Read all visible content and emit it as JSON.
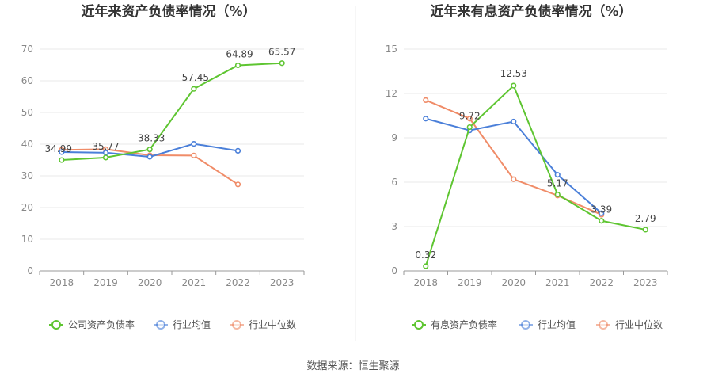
{
  "source_label": "数据来源：恒生聚源",
  "chart_data": [
    {
      "type": "line",
      "title": "近年来资产负债率情况（%）",
      "categories": [
        "2018",
        "2019",
        "2020",
        "2021",
        "2022",
        "2023"
      ],
      "ylim": [
        0,
        70
      ],
      "yticks": [
        0,
        10,
        20,
        30,
        40,
        50,
        60,
        70
      ],
      "grid": true,
      "legend_position": "bottom",
      "series": [
        {
          "name": "公司资产负债率",
          "color": "#5ec531",
          "values": [
            34.99,
            35.77,
            38.33,
            57.45,
            64.89,
            65.57
          ],
          "labels": [
            "34.99",
            "35.77",
            "38.33",
            "57.45",
            "64.89",
            "65.57"
          ]
        },
        {
          "name": "行业均值",
          "color": "#4a7fd9",
          "values": [
            37.5,
            37.3,
            36.0,
            40.1,
            37.9,
            null
          ]
        },
        {
          "name": "行业中位数",
          "color": "#f08c68",
          "values": [
            38.2,
            38.4,
            36.5,
            36.4,
            27.3,
            null
          ]
        }
      ]
    },
    {
      "type": "line",
      "title": "近年来有息资产负债率情况（%）",
      "categories": [
        "2018",
        "2019",
        "2020",
        "2021",
        "2022",
        "2023"
      ],
      "ylim": [
        0,
        15
      ],
      "yticks": [
        0,
        3,
        6,
        9,
        12,
        15
      ],
      "grid": true,
      "legend_position": "bottom",
      "series": [
        {
          "name": "有息资产负债率",
          "color": "#5ec531",
          "values": [
            0.32,
            9.72,
            12.53,
            5.17,
            3.39,
            2.79
          ],
          "labels": [
            "0.32",
            "9.72",
            "12.53",
            "5.17",
            "3.39",
            "2.79"
          ]
        },
        {
          "name": "行业均值",
          "color": "#4a7fd9",
          "values": [
            10.3,
            9.5,
            10.1,
            6.5,
            3.9,
            null
          ]
        },
        {
          "name": "行业中位数",
          "color": "#f08c68",
          "values": [
            11.55,
            10.3,
            6.2,
            5.1,
            3.8,
            null
          ]
        }
      ]
    }
  ]
}
